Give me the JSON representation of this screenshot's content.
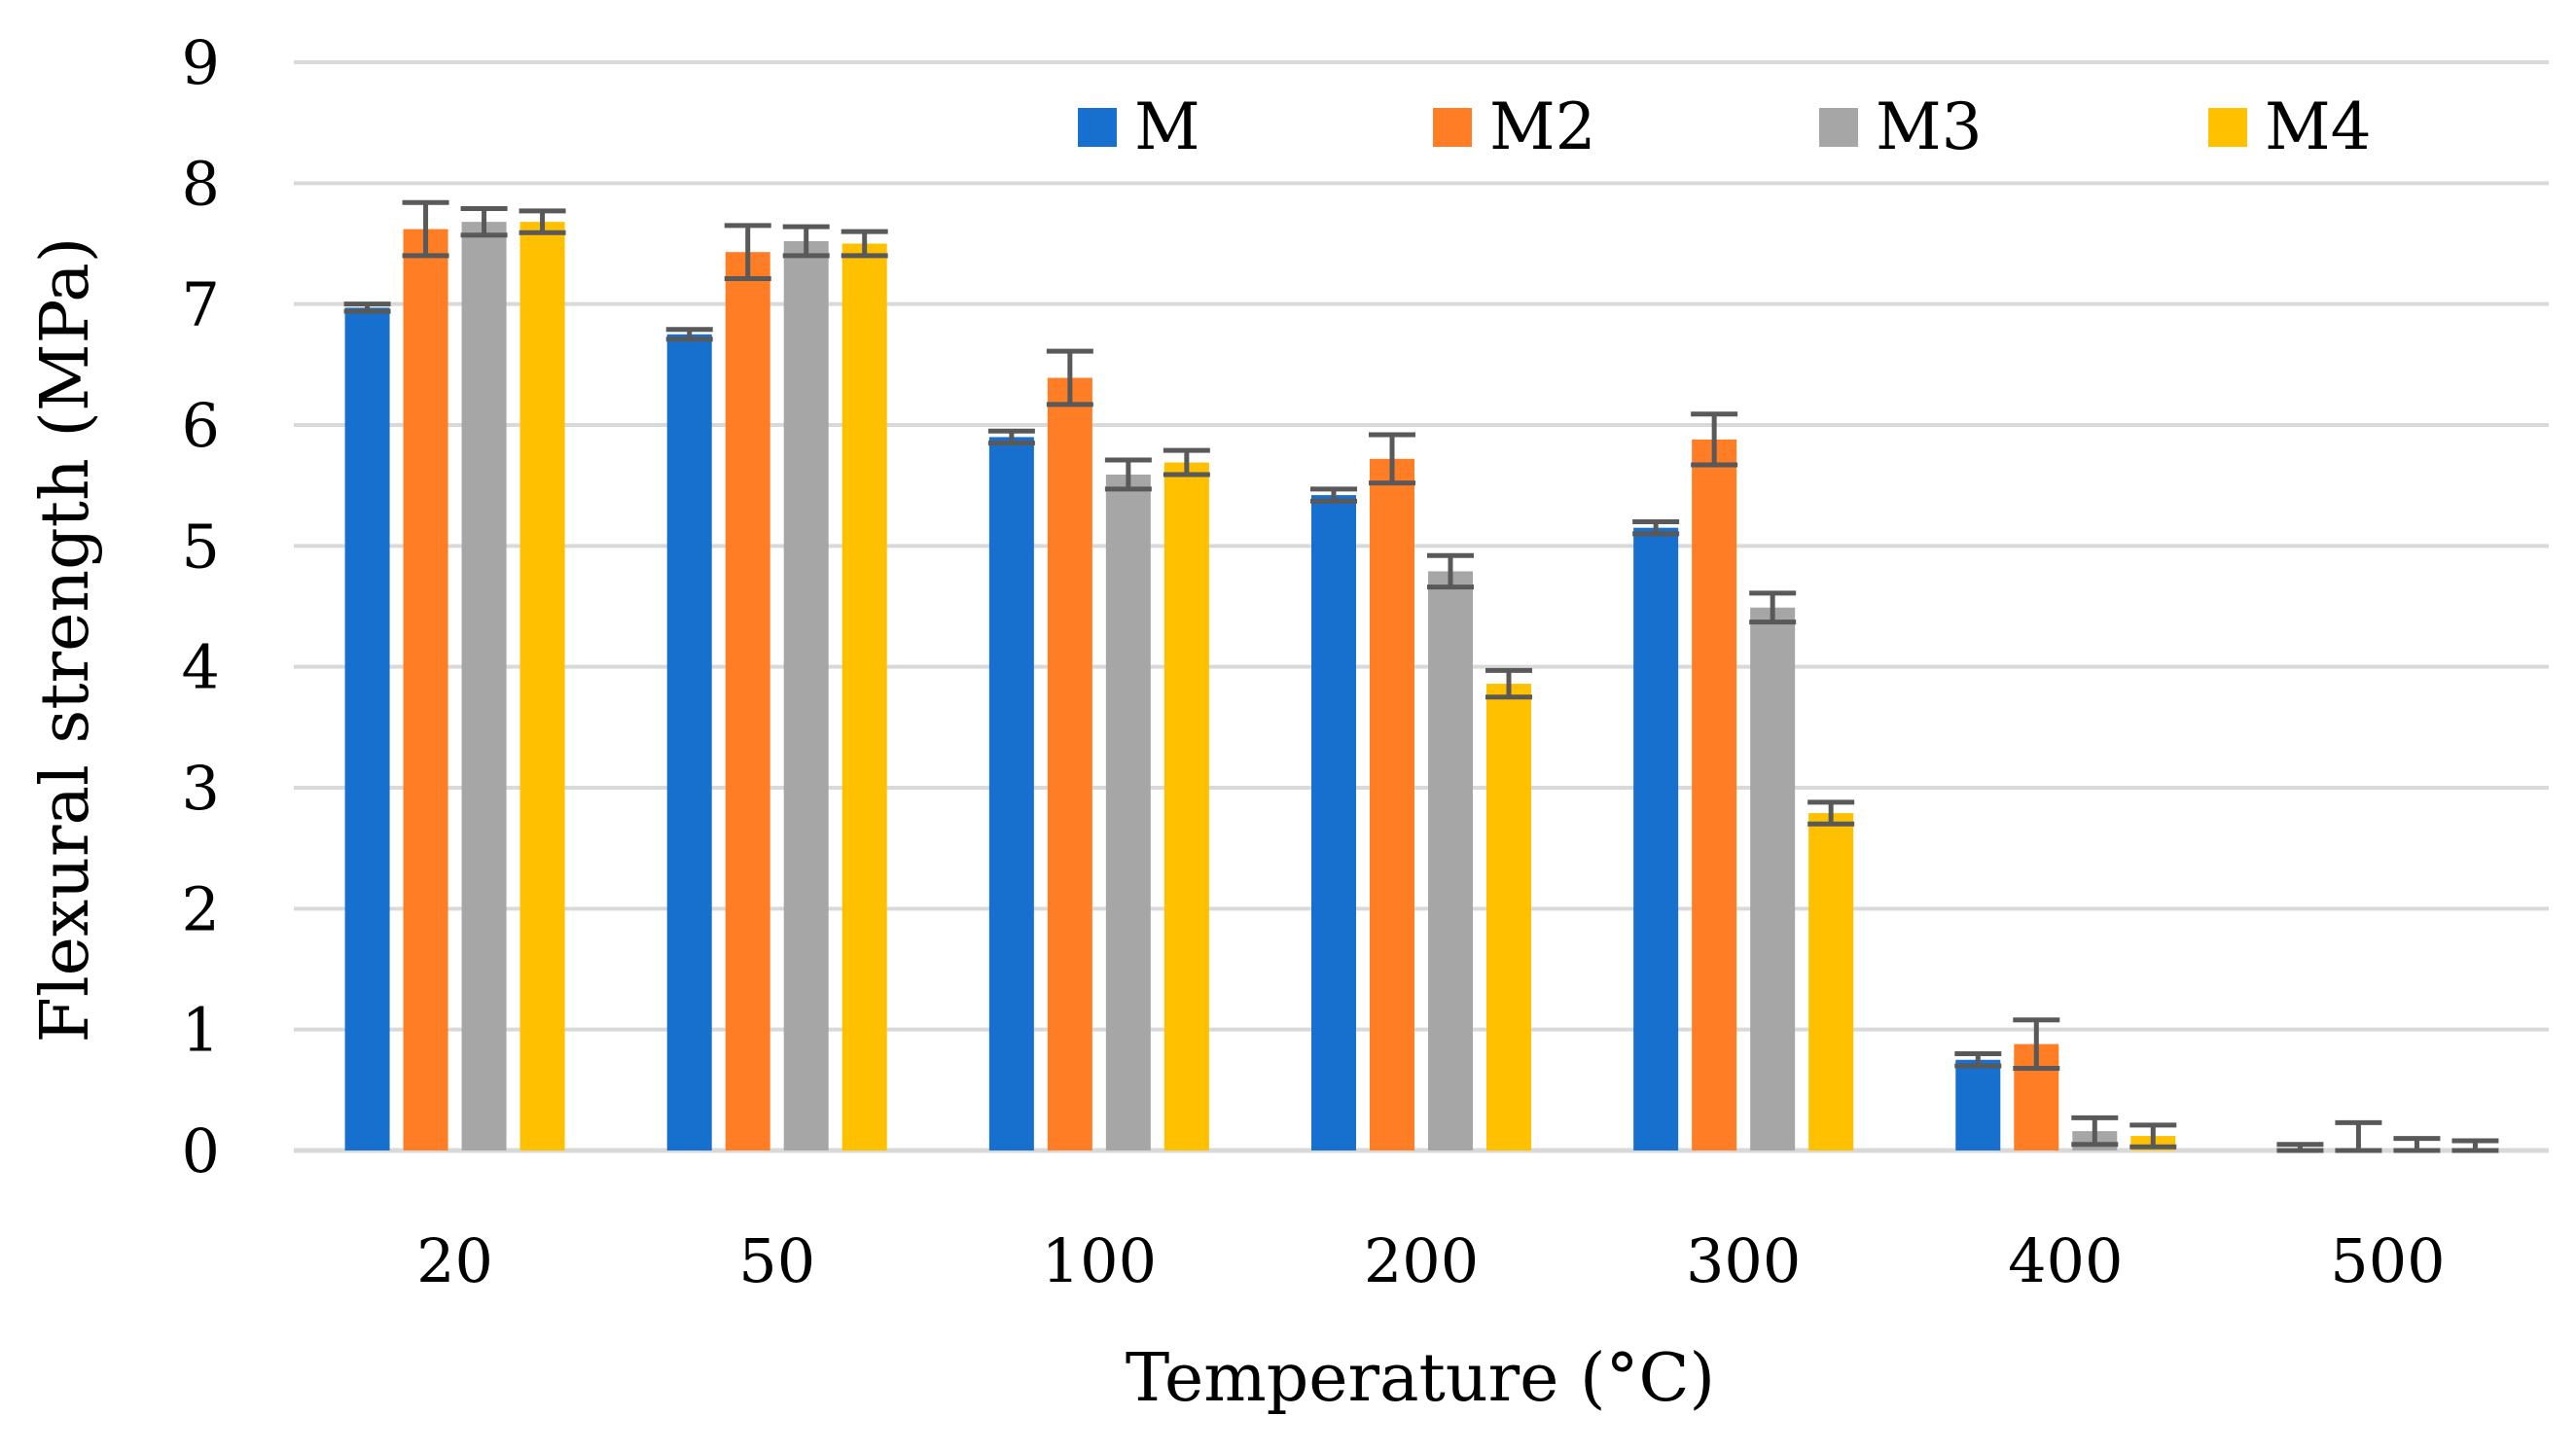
{
  "chart_data": {
    "type": "bar",
    "title": "",
    "xlabel": "Temperature (°C)",
    "ylabel": "Flexural strength (MPa)",
    "ylim": [
      0,
      9
    ],
    "yticks": [
      "0",
      "1",
      "2",
      "3",
      "4",
      "5",
      "6",
      "7",
      "8",
      "9"
    ],
    "grid": true,
    "legend_position": "top-right",
    "categories": [
      "20",
      "50",
      "100",
      "200",
      "300",
      "400",
      "500"
    ],
    "series": [
      {
        "name": "M",
        "color": "#1770cd",
        "values": [
          6.97,
          6.75,
          5.9,
          5.42,
          5.15,
          0.75,
          0.0
        ],
        "errors": [
          0.03,
          0.04,
          0.05,
          0.05,
          0.05,
          0.05,
          0.05
        ]
      },
      {
        "name": "M2",
        "color": "#ff7d25",
        "values": [
          7.62,
          7.43,
          6.39,
          5.72,
          5.88,
          0.88,
          0.0
        ],
        "errors": [
          0.22,
          0.22,
          0.22,
          0.2,
          0.21,
          0.2,
          0.23
        ]
      },
      {
        "name": "M3",
        "color": "#a6a6a6",
        "values": [
          7.68,
          7.52,
          5.59,
          4.79,
          4.49,
          0.16,
          0.0
        ],
        "errors": [
          0.11,
          0.12,
          0.12,
          0.13,
          0.12,
          0.11,
          0.1
        ]
      },
      {
        "name": "M4",
        "color": "#ffc000",
        "values": [
          7.68,
          7.5,
          5.69,
          3.86,
          2.79,
          0.12,
          0.0
        ],
        "errors": [
          0.09,
          0.1,
          0.1,
          0.11,
          0.09,
          0.09,
          0.08
        ]
      }
    ]
  },
  "colors": {
    "grid": "#d9d9d9",
    "axis": "#d9d9d9",
    "error_bar": "#595959",
    "text": "#000000"
  }
}
